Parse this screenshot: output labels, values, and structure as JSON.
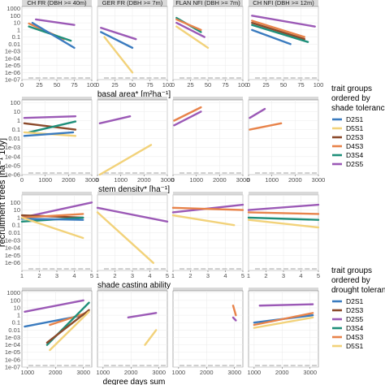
{
  "figure": {
    "y_axis_label": "recruitment trees [ha⁻¹ 10y⁻¹]",
    "y_axis_label_visible": "recruitment trees [ha⁻¹ 10y]",
    "panel_titles": [
      "CH FR (DBH >= 40m)",
      "GER FR (DBH >= 7m)",
      "FLAN NFI (DBH >= 7m)",
      "CH NFI (DBH >= 12m)"
    ],
    "legend_1": {
      "title_lines": [
        "trait groups",
        "ordered by",
        "shade tolerance"
      ],
      "items": [
        {
          "label": "D2S1",
          "color": "#3a7bbf"
        },
        {
          "label": "D5S1",
          "color": "#f2d27a"
        },
        {
          "label": "D2S3",
          "color": "#8b4a2b"
        },
        {
          "label": "D4S3",
          "color": "#e8834a"
        },
        {
          "label": "D3S4",
          "color": "#1f8f7a"
        },
        {
          "label": "D2S5",
          "color": "#9b59b6"
        }
      ]
    },
    "legend_2": {
      "title_lines": [
        "trait groups",
        "ordered by",
        "drought tolerance"
      ],
      "items": [
        {
          "label": "D2S1",
          "color": "#3a7bbf"
        },
        {
          "label": "D2S3",
          "color": "#8b4a2b"
        },
        {
          "label": "D2S5",
          "color": "#9b59b6"
        },
        {
          "label": "D3S4",
          "color": "#1f8f7a"
        },
        {
          "label": "D4S3",
          "color": "#e8834a"
        },
        {
          "label": "D5S1",
          "color": "#f2d27a"
        }
      ]
    }
  },
  "chart_data": [
    {
      "type": "line",
      "xlabel": "basal area* [m²ha⁻¹]",
      "ylabel": "recruitment trees [ha⁻¹ 10y]",
      "y_scale": "log",
      "y_ticks": [
        "1000",
        "100",
        "10",
        "1",
        "0.1",
        "0.01",
        "1e-03",
        "1e-04",
        "1e-05",
        "1e-06",
        "1e-07"
      ],
      "x_ticks": [
        0,
        25,
        50,
        75,
        100
      ],
      "xlim": [
        0,
        100
      ],
      "panels": [
        {
          "title": "CH FR (DBH >= 40m)",
          "series": [
            {
              "name": "D2S5",
              "x": [
                20,
                75
              ],
              "y": [
                30,
                5
              ]
            },
            {
              "name": "D4S3",
              "x": [
                10,
                60
              ],
              "y": [
                8,
                0.05
              ]
            },
            {
              "name": "D3S4",
              "x": [
                10,
                70
              ],
              "y": [
                3,
                0.03
              ]
            },
            {
              "name": "D2S1",
              "x": [
                15,
                75
              ],
              "y": [
                10,
                0.003
              ]
            }
          ]
        },
        {
          "title": "GER FR (DBH >= 7m)",
          "series": [
            {
              "name": "D2S5",
              "x": [
                5,
                55
              ],
              "y": [
                2,
                0.05
              ]
            },
            {
              "name": "D2S1",
              "x": [
                5,
                50
              ],
              "y": [
                0.5,
                0.003
              ]
            },
            {
              "name": "D5S1",
              "x": [
                10,
                50
              ],
              "y": [
                0.1,
                1e-06
              ]
            }
          ]
        },
        {
          "title": "FLAN NFI (DBH >= 7m)",
          "series": [
            {
              "name": "D3S4",
              "x": [
                5,
                40
              ],
              "y": [
                50,
                0.5
              ]
            },
            {
              "name": "D4S3",
              "x": [
                5,
                40
              ],
              "y": [
                30,
                1
              ]
            },
            {
              "name": "D2S5",
              "x": [
                5,
                45
              ],
              "y": [
                10,
                0.1
              ]
            },
            {
              "name": "D5S1",
              "x": [
                5,
                50
              ],
              "y": [
                3,
                0.003
              ]
            }
          ]
        },
        {
          "title": "CH NFI (DBH >= 12m)",
          "series": [
            {
              "name": "D2S5",
              "x": [
                5,
                95
              ],
              "y": [
                100,
                3
              ]
            },
            {
              "name": "D4S3",
              "x": [
                5,
                80
              ],
              "y": [
                20,
                0.1
              ]
            },
            {
              "name": "D2S3",
              "x": [
                5,
                80
              ],
              "y": [
                10,
                0.05
              ]
            },
            {
              "name": "D3S4",
              "x": [
                5,
                85
              ],
              "y": [
                5,
                0.02
              ]
            },
            {
              "name": "D2S1",
              "x": [
                5,
                60
              ],
              "y": [
                1,
                0.01
              ]
            }
          ]
        }
      ]
    },
    {
      "type": "line",
      "xlabel": "stem density* [ha⁻¹]",
      "y_scale": "log",
      "y_ticks": [
        "100",
        "10",
        "1",
        "0.1",
        "0.01",
        "1e-03",
        "1e-04",
        "1e-05",
        "1e-06"
      ],
      "x_ticks": [
        0,
        1000,
        2000,
        3000
      ],
      "xlim": [
        0,
        3000
      ],
      "panels": [
        {
          "title": "CH FR (DBH >= 40m)",
          "series": [
            {
              "name": "D2S5",
              "x": [
                100,
                2300
              ],
              "y": [
                2,
                3
              ]
            },
            {
              "name": "D2S3",
              "x": [
                100,
                2300
              ],
              "y": [
                0.5,
                0.1
              ]
            },
            {
              "name": "D3S4",
              "x": [
                300,
                2300
              ],
              "y": [
                0.05,
                0.8
              ]
            },
            {
              "name": "D5S1",
              "x": [
                100,
                2300
              ],
              "y": [
                0.05,
                0.02
              ]
            },
            {
              "name": "D2S1",
              "x": [
                100,
                2200
              ],
              "y": [
                0.02,
                0.05
              ]
            }
          ]
        },
        {
          "title": "GER FR (DBH >= 7m)",
          "series": [
            {
              "name": "D2S5",
              "x": [
                100,
                1400
              ],
              "y": [
                0.5,
                3
              ]
            },
            {
              "name": "D5S1",
              "x": [
                100,
                2300
              ],
              "y": [
                1e-06,
                0.002
              ]
            }
          ]
        },
        {
          "title": "FLAN NFI (DBH >= 7m)",
          "series": [
            {
              "name": "D4S3",
              "x": [
                50,
                1200
              ],
              "y": [
                1,
                30
              ]
            },
            {
              "name": "D2S5",
              "x": [
                50,
                1200
              ],
              "y": [
                0.3,
                10
              ]
            }
          ]
        },
        {
          "title": "CH NFI (DBH >= 12m)",
          "series": [
            {
              "name": "D2S5",
              "x": [
                50,
                700
              ],
              "y": [
                2,
                20
              ]
            },
            {
              "name": "D4S3",
              "x": [
                50,
                1400
              ],
              "y": [
                0.1,
                0.5
              ]
            }
          ]
        }
      ]
    },
    {
      "type": "line",
      "xlabel": "shade casting ability",
      "y_scale": "log",
      "x_ticks": [
        1,
        2,
        3,
        4,
        5
      ],
      "xlim": [
        1,
        5
      ],
      "panels": [
        {
          "title": "CH FR (DBH >= 40m)",
          "series": [
            {
              "name": "D2S5",
              "x": [
                1,
                5
              ],
              "y": [
                1,
                100
              ]
            },
            {
              "name": "D2S3",
              "x": [
                1,
                4.5
              ],
              "y": [
                2,
                1
              ]
            },
            {
              "name": "D4S3",
              "x": [
                1,
                4.5
              ],
              "y": [
                1,
                3
              ]
            },
            {
              "name": "D3S4",
              "x": [
                1,
                4.5
              ],
              "y": [
                0.3,
                1
              ]
            },
            {
              "name": "D2S1",
              "x": [
                1,
                4.5
              ],
              "y": [
                0.7,
                0.5
              ]
            },
            {
              "name": "D5S1",
              "x": [
                1,
                4.5
              ],
              "y": [
                1,
                0.002
              ]
            }
          ]
        },
        {
          "title": "GER FR (DBH >= 7m)",
          "series": [
            {
              "name": "D2S5",
              "x": [
                1,
                5
              ],
              "y": [
                20,
                0.3
              ]
            },
            {
              "name": "D5S1",
              "x": [
                1,
                4.2
              ],
              "y": [
                5,
                1e-06
              ]
            }
          ]
        },
        {
          "title": "FLAN NFI (DBH >= 7m)",
          "series": [
            {
              "name": "D2S5",
              "x": [
                1,
                5
              ],
              "y": [
                5,
                50
              ]
            },
            {
              "name": "D4S3",
              "x": [
                1,
                5
              ],
              "y": [
                20,
                10
              ]
            },
            {
              "name": "D5S1",
              "x": [
                1,
                4.5
              ],
              "y": [
                2,
                0.1
              ]
            }
          ]
        },
        {
          "title": "CH NFI (DBH >= 12m)",
          "series": [
            {
              "name": "D2S5",
              "x": [
                1,
                5
              ],
              "y": [
                10,
                50
              ]
            },
            {
              "name": "D4S3",
              "x": [
                1,
                5
              ],
              "y": [
                5,
                3
              ]
            },
            {
              "name": "D3S4",
              "x": [
                1,
                5
              ],
              "y": [
                1,
                0.5
              ]
            },
            {
              "name": "D5S1",
              "x": [
                1,
                5
              ],
              "y": [
                0.5,
                0.05
              ]
            }
          ]
        }
      ]
    },
    {
      "type": "line",
      "xlabel": "degree days sum",
      "y_scale": "log",
      "y_ticks": [
        "1000",
        "100",
        "10",
        "1",
        "0.1",
        "0.01",
        "1e-03",
        "1e-04",
        "1e-05",
        "1e-06",
        "1e-07"
      ],
      "x_ticks": [
        1000,
        2000,
        3000
      ],
      "xlim": [
        800,
        3300
      ],
      "panels": [
        {
          "title": "CH FR (DBH >= 40m)",
          "series": [
            {
              "name": "D2S5",
              "x": [
                900,
                3000
              ],
              "y": [
                3,
                100
              ]
            },
            {
              "name": "D2S1",
              "x": [
                900,
                3000
              ],
              "y": [
                0.03,
                1
              ]
            },
            {
              "name": "D4S3",
              "x": [
                1800,
                3100
              ],
              "y": [
                0.05,
                2
              ]
            },
            {
              "name": "D3S4",
              "x": [
                1700,
                3200
              ],
              "y": [
                0.0001,
                50
              ]
            },
            {
              "name": "D2S3",
              "x": [
                1700,
                3200
              ],
              "y": [
                0.0002,
                5
              ]
            },
            {
              "name": "D5S1",
              "x": [
                1800,
                3200
              ],
              "y": [
                2e-05,
                3
              ]
            }
          ]
        },
        {
          "title": "GER FR (DBH >= 7m)",
          "series": [
            {
              "name": "D2S5",
              "x": [
                1900,
                2900
              ],
              "y": [
                0.5,
                2
              ]
            },
            {
              "name": "D5S1",
              "x": [
                2500,
                2900
              ],
              "y": [
                0.0001,
                0.01
              ]
            }
          ]
        },
        {
          "title": "FLAN NFI (DBH >= 7m)",
          "series": [
            {
              "name": "D4S3",
              "x": [
                2950,
                3050
              ],
              "y": [
                20,
                1
              ]
            },
            {
              "name": "D2S5",
              "x": [
                2950,
                3050
              ],
              "y": [
                0.5,
                0.2
              ]
            }
          ]
        },
        {
          "title": "CH NFI (DBH >= 12m)",
          "series": [
            {
              "name": "D2S5",
              "x": [
                1200,
                3100
              ],
              "y": [
                20,
                30
              ]
            },
            {
              "name": "D2S1",
              "x": [
                1000,
                3100
              ],
              "y": [
                0.1,
                1
              ]
            },
            {
              "name": "D4S3",
              "x": [
                1000,
                3100
              ],
              "y": [
                0.05,
                2
              ]
            },
            {
              "name": "D5S1",
              "x": [
                1000,
                3100
              ],
              "y": [
                0.02,
                0.5
              ]
            }
          ]
        }
      ]
    }
  ]
}
